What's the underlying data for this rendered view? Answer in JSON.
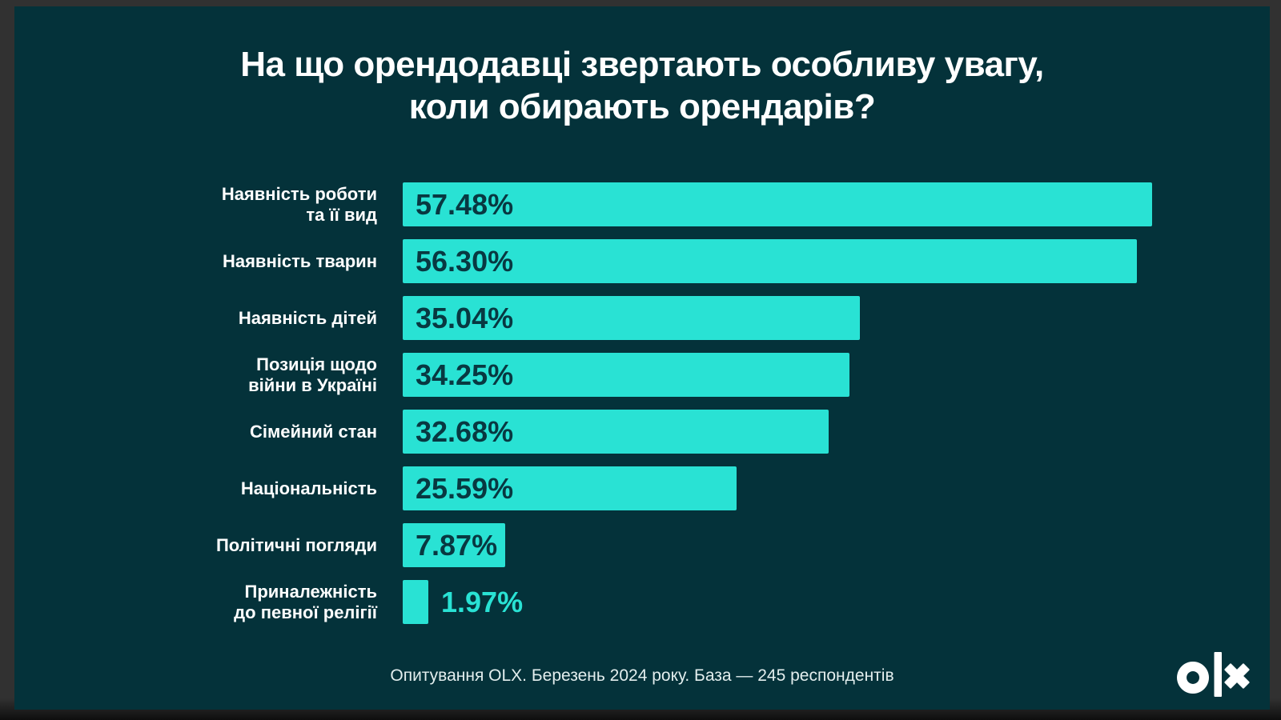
{
  "title": {
    "line1": "На що орендодавці звертають особливу увагу,",
    "line2": "коли обирають орендарів?"
  },
  "chart_data": {
    "type": "bar",
    "orientation": "horizontal",
    "title": "На що орендодавці звертають особливу увагу, коли обирають орендарів?",
    "categories": [
      "Наявність роботи\nта її вид",
      "Наявність тварин",
      "Наявність дітей",
      "Позиція щодо\nвійни в Україні",
      "Сімейний стан",
      "Національність",
      "Політичні погляди",
      "Приналежність\nдо певної релігії"
    ],
    "values": [
      57.48,
      56.3,
      35.04,
      34.25,
      32.68,
      25.59,
      7.87,
      1.97
    ],
    "value_labels": [
      "57.48%",
      "56.30%",
      "35.04%",
      "34.25%",
      "32.68%",
      "25.59%",
      "7.87%",
      "1.97%"
    ],
    "xlim": [
      0,
      60
    ],
    "grid": false,
    "legend": false,
    "bar_color": "#29e2d4",
    "value_label_inside_color": "#083841",
    "value_label_outside_color": "#29e2d4"
  },
  "footer": {
    "source_note": "Опитування OLX. Березень 2024 року. База — 245 респондентів"
  },
  "logo": {
    "name": "olx-logo",
    "color": "#ffffff"
  },
  "colors": {
    "canvas_bg": "#04323a",
    "frame_bg": "#313131",
    "title_text": "#ffffff",
    "label_text": "#ffffff",
    "footer_text": "#e3eeee"
  }
}
